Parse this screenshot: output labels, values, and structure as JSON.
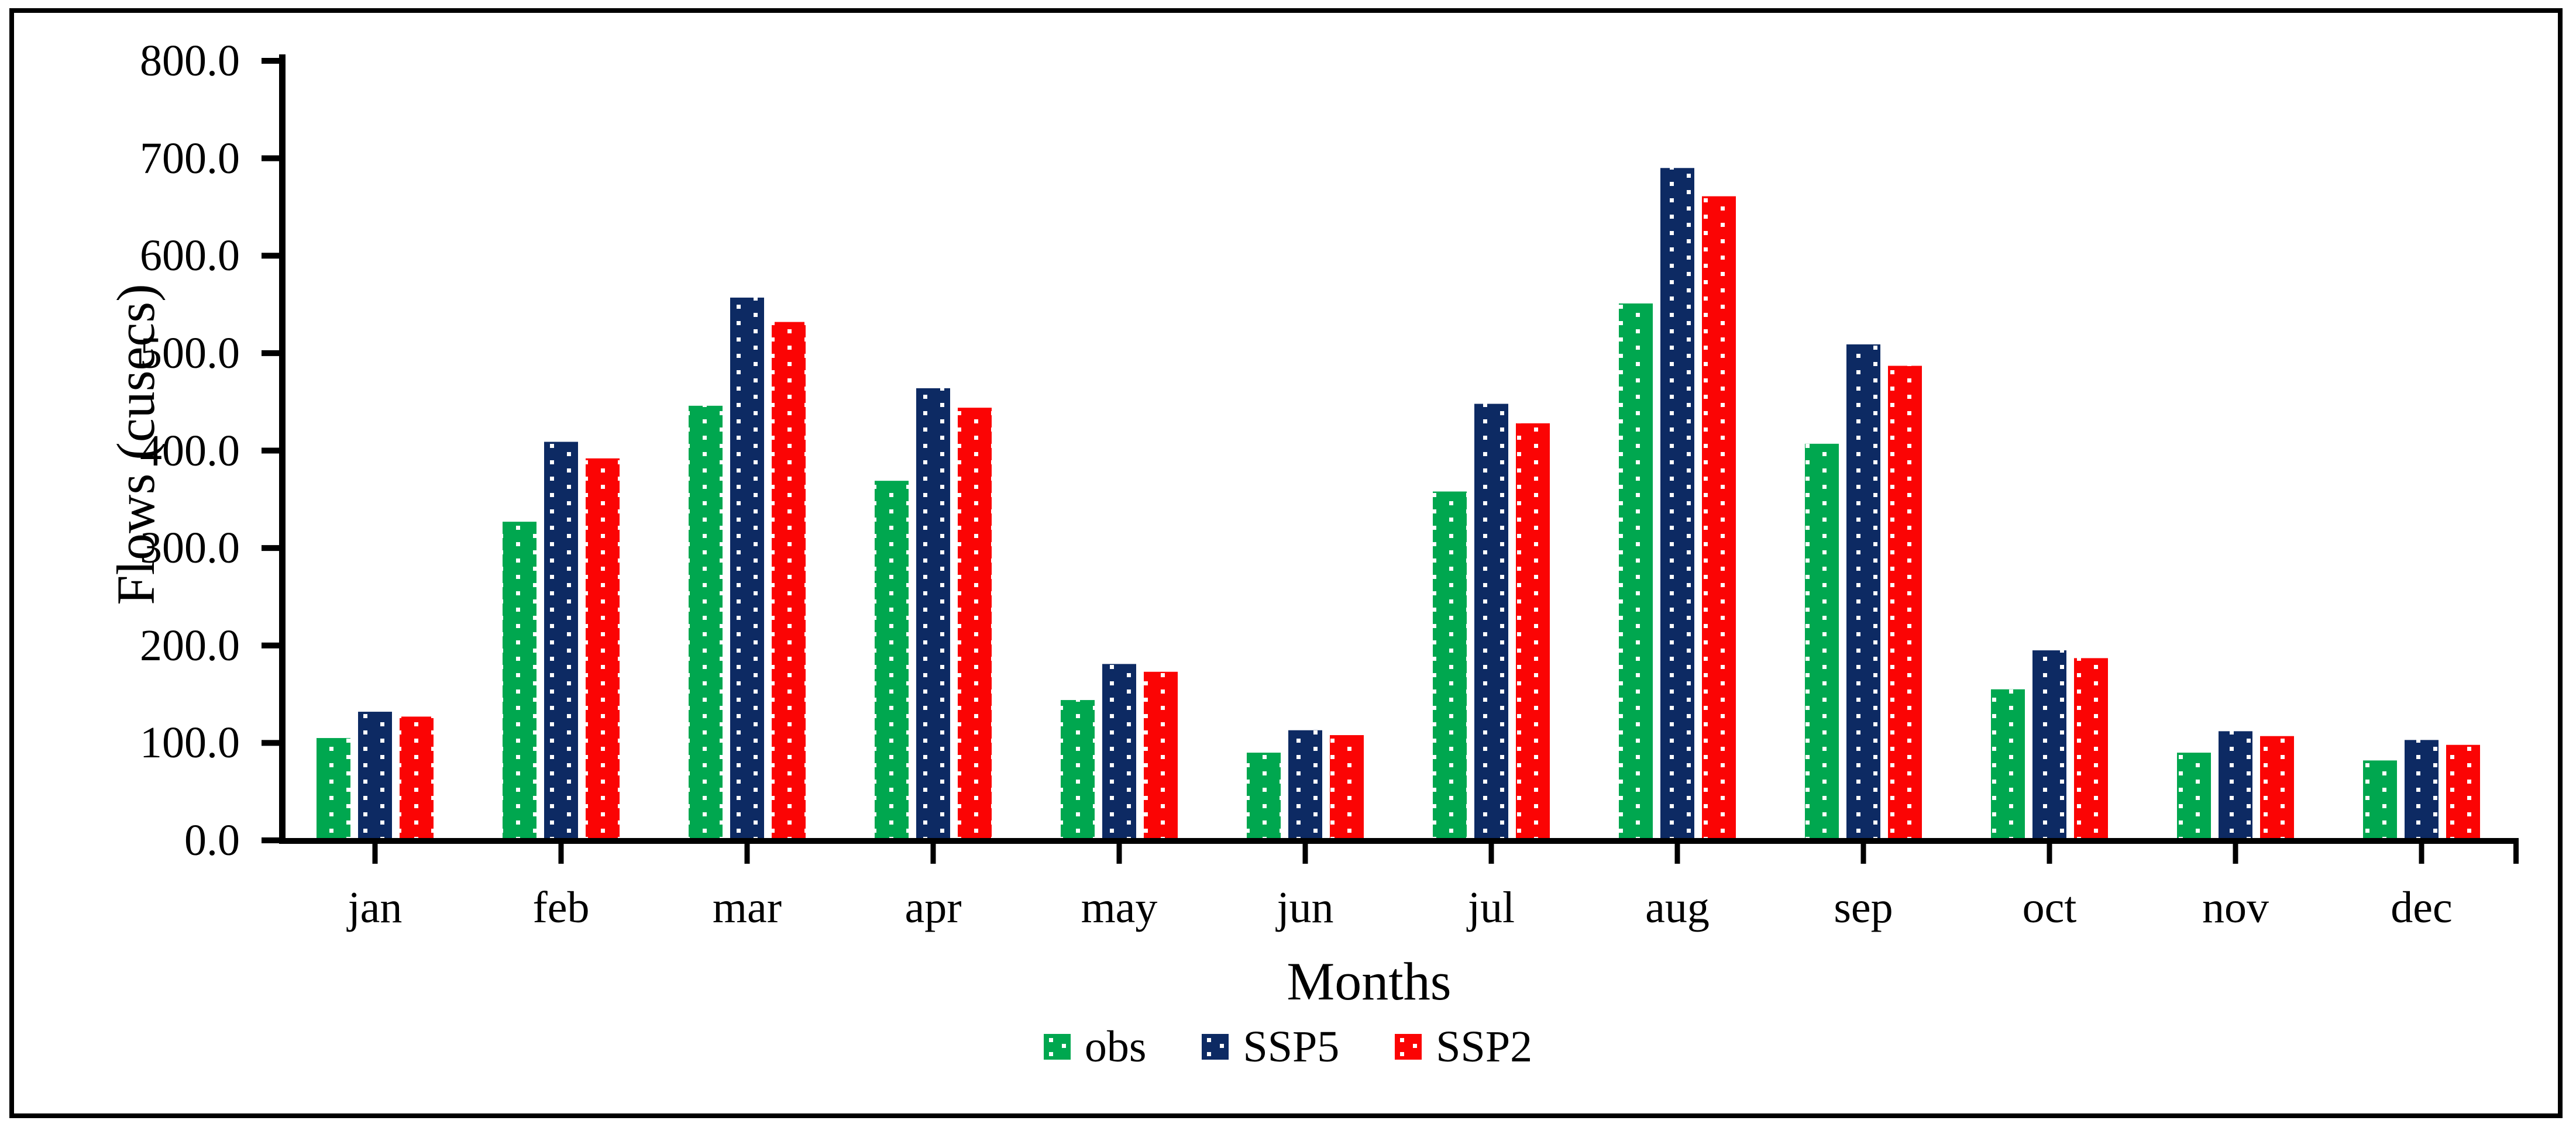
{
  "chart": {
    "ylabel": "Flows (cusecs)",
    "xlabel": "Months"
  },
  "chart_data": {
    "type": "bar",
    "title": "",
    "xlabel": "Months",
    "ylabel": "Flows (cusecs)",
    "categories": [
      "jan",
      "feb",
      "mar",
      "apr",
      "may",
      "jun",
      "jul",
      "aug",
      "sep",
      "oct",
      "nov",
      "dec"
    ],
    "series": [
      {
        "name": "obs",
        "color": "#00A74F",
        "values": [
          105,
          327,
          446,
          369,
          144,
          90,
          358,
          551,
          407,
          155,
          90,
          82
        ]
      },
      {
        "name": "SSP5",
        "color": "#0D2A63",
        "values": [
          132,
          409,
          557,
          464,
          181,
          113,
          448,
          690,
          509,
          195,
          112,
          103
        ]
      },
      {
        "name": "SSP2",
        "color": "#FB0404",
        "values": [
          127,
          392,
          532,
          444,
          173,
          108,
          428,
          661,
          487,
          187,
          107,
          98
        ]
      }
    ],
    "ylim": [
      0,
      800
    ],
    "ytick_step": 100,
    "ytick_decimals": 1,
    "ytick_labels": [
      "0.0",
      "100.0",
      "200.0",
      "300.0",
      "400.0",
      "500.0",
      "600.0",
      "700.0",
      "800.0"
    ],
    "bar_pattern": "white-square-dots",
    "pattern_dot_color": "#FFFFFF",
    "axis_color": "#000000",
    "legend_position": "bottom",
    "grid": false
  }
}
